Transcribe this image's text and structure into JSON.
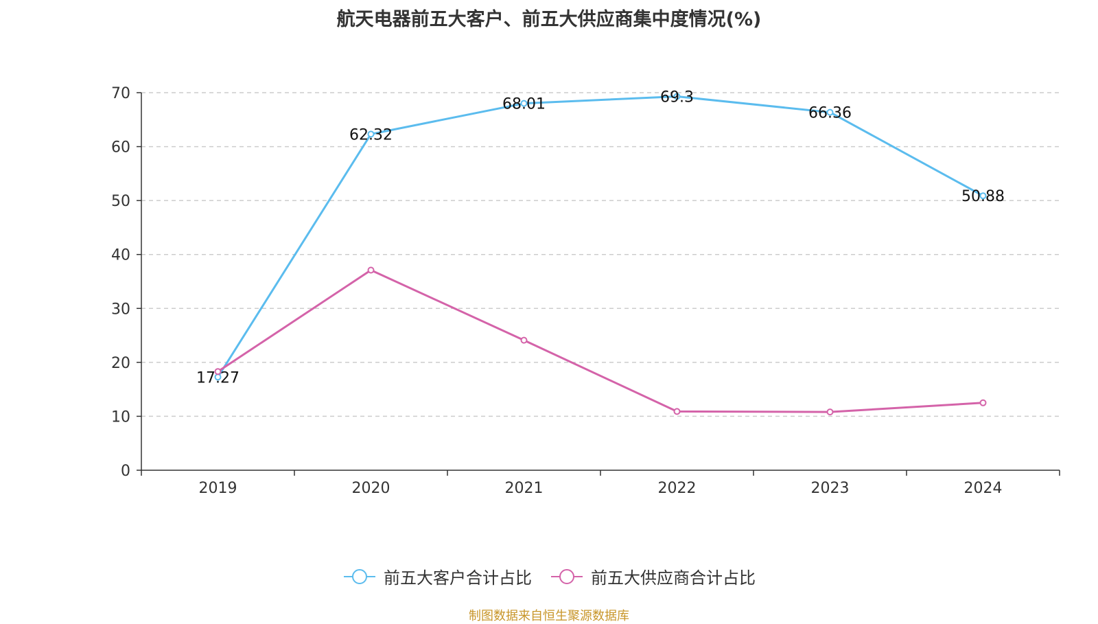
{
  "title": "航天电器前五大客户、前五大供应商集中度情况(%)",
  "source": "制图数据来自恒生聚源数据库",
  "colors": {
    "customers": "#5bbcee",
    "suppliers": "#d463a9",
    "axis": "#333333",
    "grid": "#cccccc"
  },
  "chart_data": {
    "type": "line",
    "title": "航天电器前五大客户、前五大供应商集中度情况(%)",
    "categories": [
      "2019",
      "2020",
      "2021",
      "2022",
      "2023",
      "2024"
    ],
    "ylim": [
      0,
      70
    ],
    "yticks": [
      0,
      10,
      20,
      30,
      40,
      50,
      60,
      70
    ],
    "grid": true,
    "legend_position": "bottom",
    "series": [
      {
        "name": "前五大客户合计占比",
        "values": [
          17.27,
          62.32,
          68.01,
          69.3,
          66.36,
          50.88
        ],
        "labels": [
          "17.27",
          "62.32",
          "68.01",
          "69.3",
          "66.36",
          "50.88"
        ]
      },
      {
        "name": "前五大供应商合计占比",
        "values": [
          18.3,
          37.1,
          24.1,
          10.9,
          10.8,
          12.5
        ]
      }
    ]
  }
}
